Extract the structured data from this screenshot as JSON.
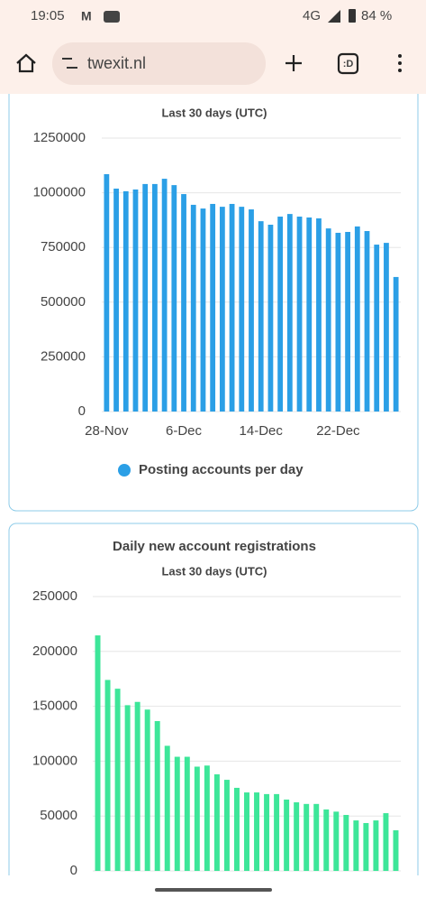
{
  "status_bar": {
    "time": "19:05",
    "network": "4G",
    "battery": "84 %"
  },
  "browser": {
    "url": "twexit.nl"
  },
  "chart_data": [
    {
      "type": "bar",
      "subtitle": "Last 30 days (UTC)",
      "categories": [
        "28-Nov",
        null,
        null,
        null,
        null,
        null,
        null,
        null,
        "6-Dec",
        null,
        null,
        null,
        null,
        null,
        null,
        null,
        "14-Dec",
        null,
        null,
        null,
        null,
        null,
        null,
        null,
        "22-Dec",
        null,
        null,
        null,
        null,
        null,
        null
      ],
      "series": [
        {
          "name": "Posting accounts per day",
          "color": "#2b9fe6",
          "values": [
            1085000,
            1019000,
            1007000,
            1015000,
            1040000,
            1040000,
            1064000,
            1035000,
            994000,
            945000,
            928000,
            949000,
            936000,
            949000,
            936000,
            924000,
            870000,
            854000,
            891000,
            903000,
            891000,
            887000,
            883000,
            837000,
            817000,
            821000,
            846000,
            825000,
            763000,
            771000,
            615000
          ]
        }
      ],
      "ylim": [
        0,
        1250000
      ],
      "yticks": [
        0,
        250000,
        500000,
        750000,
        1000000,
        1250000
      ],
      "grid": true,
      "legend": "bottom"
    },
    {
      "type": "bar",
      "title": "Daily new account registrations",
      "subtitle": "Last 30 days (UTC)",
      "series": [
        {
          "name": "New account registrations",
          "color": "#3de699",
          "values": [
            214600,
            174000,
            166000,
            151000,
            154000,
            147000,
            136500,
            114000,
            104000,
            104000,
            95000,
            96000,
            88000,
            83000,
            75700,
            71500,
            71500,
            70000,
            70000,
            65000,
            62500,
            61000,
            61000,
            56000,
            54000,
            51000,
            46000,
            43600,
            46000,
            52600,
            37000
          ]
        }
      ],
      "ylim": [
        0,
        250000
      ],
      "yticks": [
        0,
        50000,
        100000,
        150000,
        200000,
        250000
      ],
      "grid": true
    }
  ]
}
